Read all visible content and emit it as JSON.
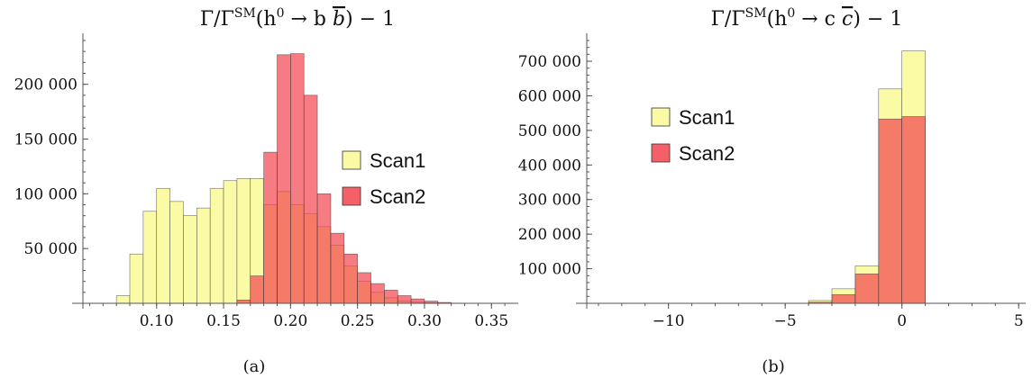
{
  "colors": {
    "scan1_fill": "#fbfba6",
    "scan2_fill": "#f2434e",
    "scan2_opacity": 0.7,
    "bar_stroke": "#333333"
  },
  "chart_data": [
    {
      "type": "bar",
      "subtype": "histogram",
      "title_main": "Γ/Γ",
      "title_sup": "SM",
      "title_rest_1": "(h",
      "title_sup2": "0",
      "title_rest_2": " → b ",
      "title_bbar": "b",
      "title_rest_3": ") − 1",
      "caption": "(a)",
      "xlim": [
        0.045,
        0.37
      ],
      "ylim": [
        0,
        240000
      ],
      "xticks": [
        0.1,
        0.15,
        0.2,
        0.25,
        0.3,
        0.35
      ],
      "xtick_labels": [
        "0.10",
        "0.15",
        "0.20",
        "0.25",
        "0.30",
        "0.35"
      ],
      "yticks": [
        50000,
        100000,
        150000,
        200000
      ],
      "ytick_labels": [
        "50 000",
        "100 000",
        "150 000",
        "200 000"
      ],
      "grid": false,
      "legend_position": "center-right",
      "bin_width": 0.01,
      "series": [
        {
          "name": "Scan1",
          "color": "#fbfba6",
          "bins_left": [
            0.07,
            0.08,
            0.09,
            0.1,
            0.11,
            0.12,
            0.13,
            0.14,
            0.15,
            0.16,
            0.17,
            0.18,
            0.19,
            0.2,
            0.21,
            0.22,
            0.23,
            0.24,
            0.25,
            0.26,
            0.27,
            0.28,
            0.29,
            0.3,
            0.31
          ],
          "values": [
            7000,
            45000,
            84000,
            105000,
            93000,
            80000,
            87000,
            105000,
            112000,
            114000,
            114000,
            90000,
            102000,
            90000,
            82000,
            70000,
            53000,
            34000,
            20000,
            10000,
            5000,
            2000,
            1000,
            500,
            200
          ]
        },
        {
          "name": "Scan2",
          "color": "#f2434e",
          "bins_left": [
            0.16,
            0.17,
            0.18,
            0.19,
            0.2,
            0.21,
            0.22,
            0.23,
            0.24,
            0.25,
            0.26,
            0.27,
            0.28,
            0.29,
            0.3,
            0.31,
            0.32
          ],
          "values": [
            3000,
            25000,
            138000,
            227000,
            228000,
            190000,
            100000,
            64000,
            45000,
            28000,
            18000,
            12000,
            7000,
            4000,
            2000,
            800,
            200
          ]
        }
      ]
    },
    {
      "type": "bar",
      "subtype": "histogram",
      "title_main": "Γ/Γ",
      "title_sup": "SM",
      "title_rest_1": "(h",
      "title_sup2": "0",
      "title_rest_2": " → c ",
      "title_bbar": "c",
      "title_rest_3": ") − 1",
      "caption": "(b)",
      "xlim": [
        -13.5,
        5.3
      ],
      "ylim": [
        0,
        760000
      ],
      "xticks": [
        -10,
        -5,
        0,
        5
      ],
      "xtick_labels": [
        "−10",
        "−5",
        "0",
        "5"
      ],
      "yticks": [
        100000,
        200000,
        300000,
        400000,
        500000,
        600000,
        700000
      ],
      "ytick_labels": [
        "100 000",
        "200 000",
        "300 000",
        "400 000",
        "500 000",
        "600 000",
        "700 000"
      ],
      "grid": false,
      "legend_position": "center-left",
      "bin_width": 1,
      "series": [
        {
          "name": "Scan1",
          "color": "#fbfba6",
          "bins_left": [
            -4,
            -3,
            -2,
            -1,
            0
          ],
          "values": [
            8000,
            42000,
            108000,
            620000,
            730000
          ]
        },
        {
          "name": "Scan2",
          "color": "#f2434e",
          "bins_left": [
            -4,
            -3,
            -2,
            -1,
            0
          ],
          "values": [
            3000,
            25000,
            85000,
            533000,
            540000
          ]
        }
      ]
    }
  ]
}
